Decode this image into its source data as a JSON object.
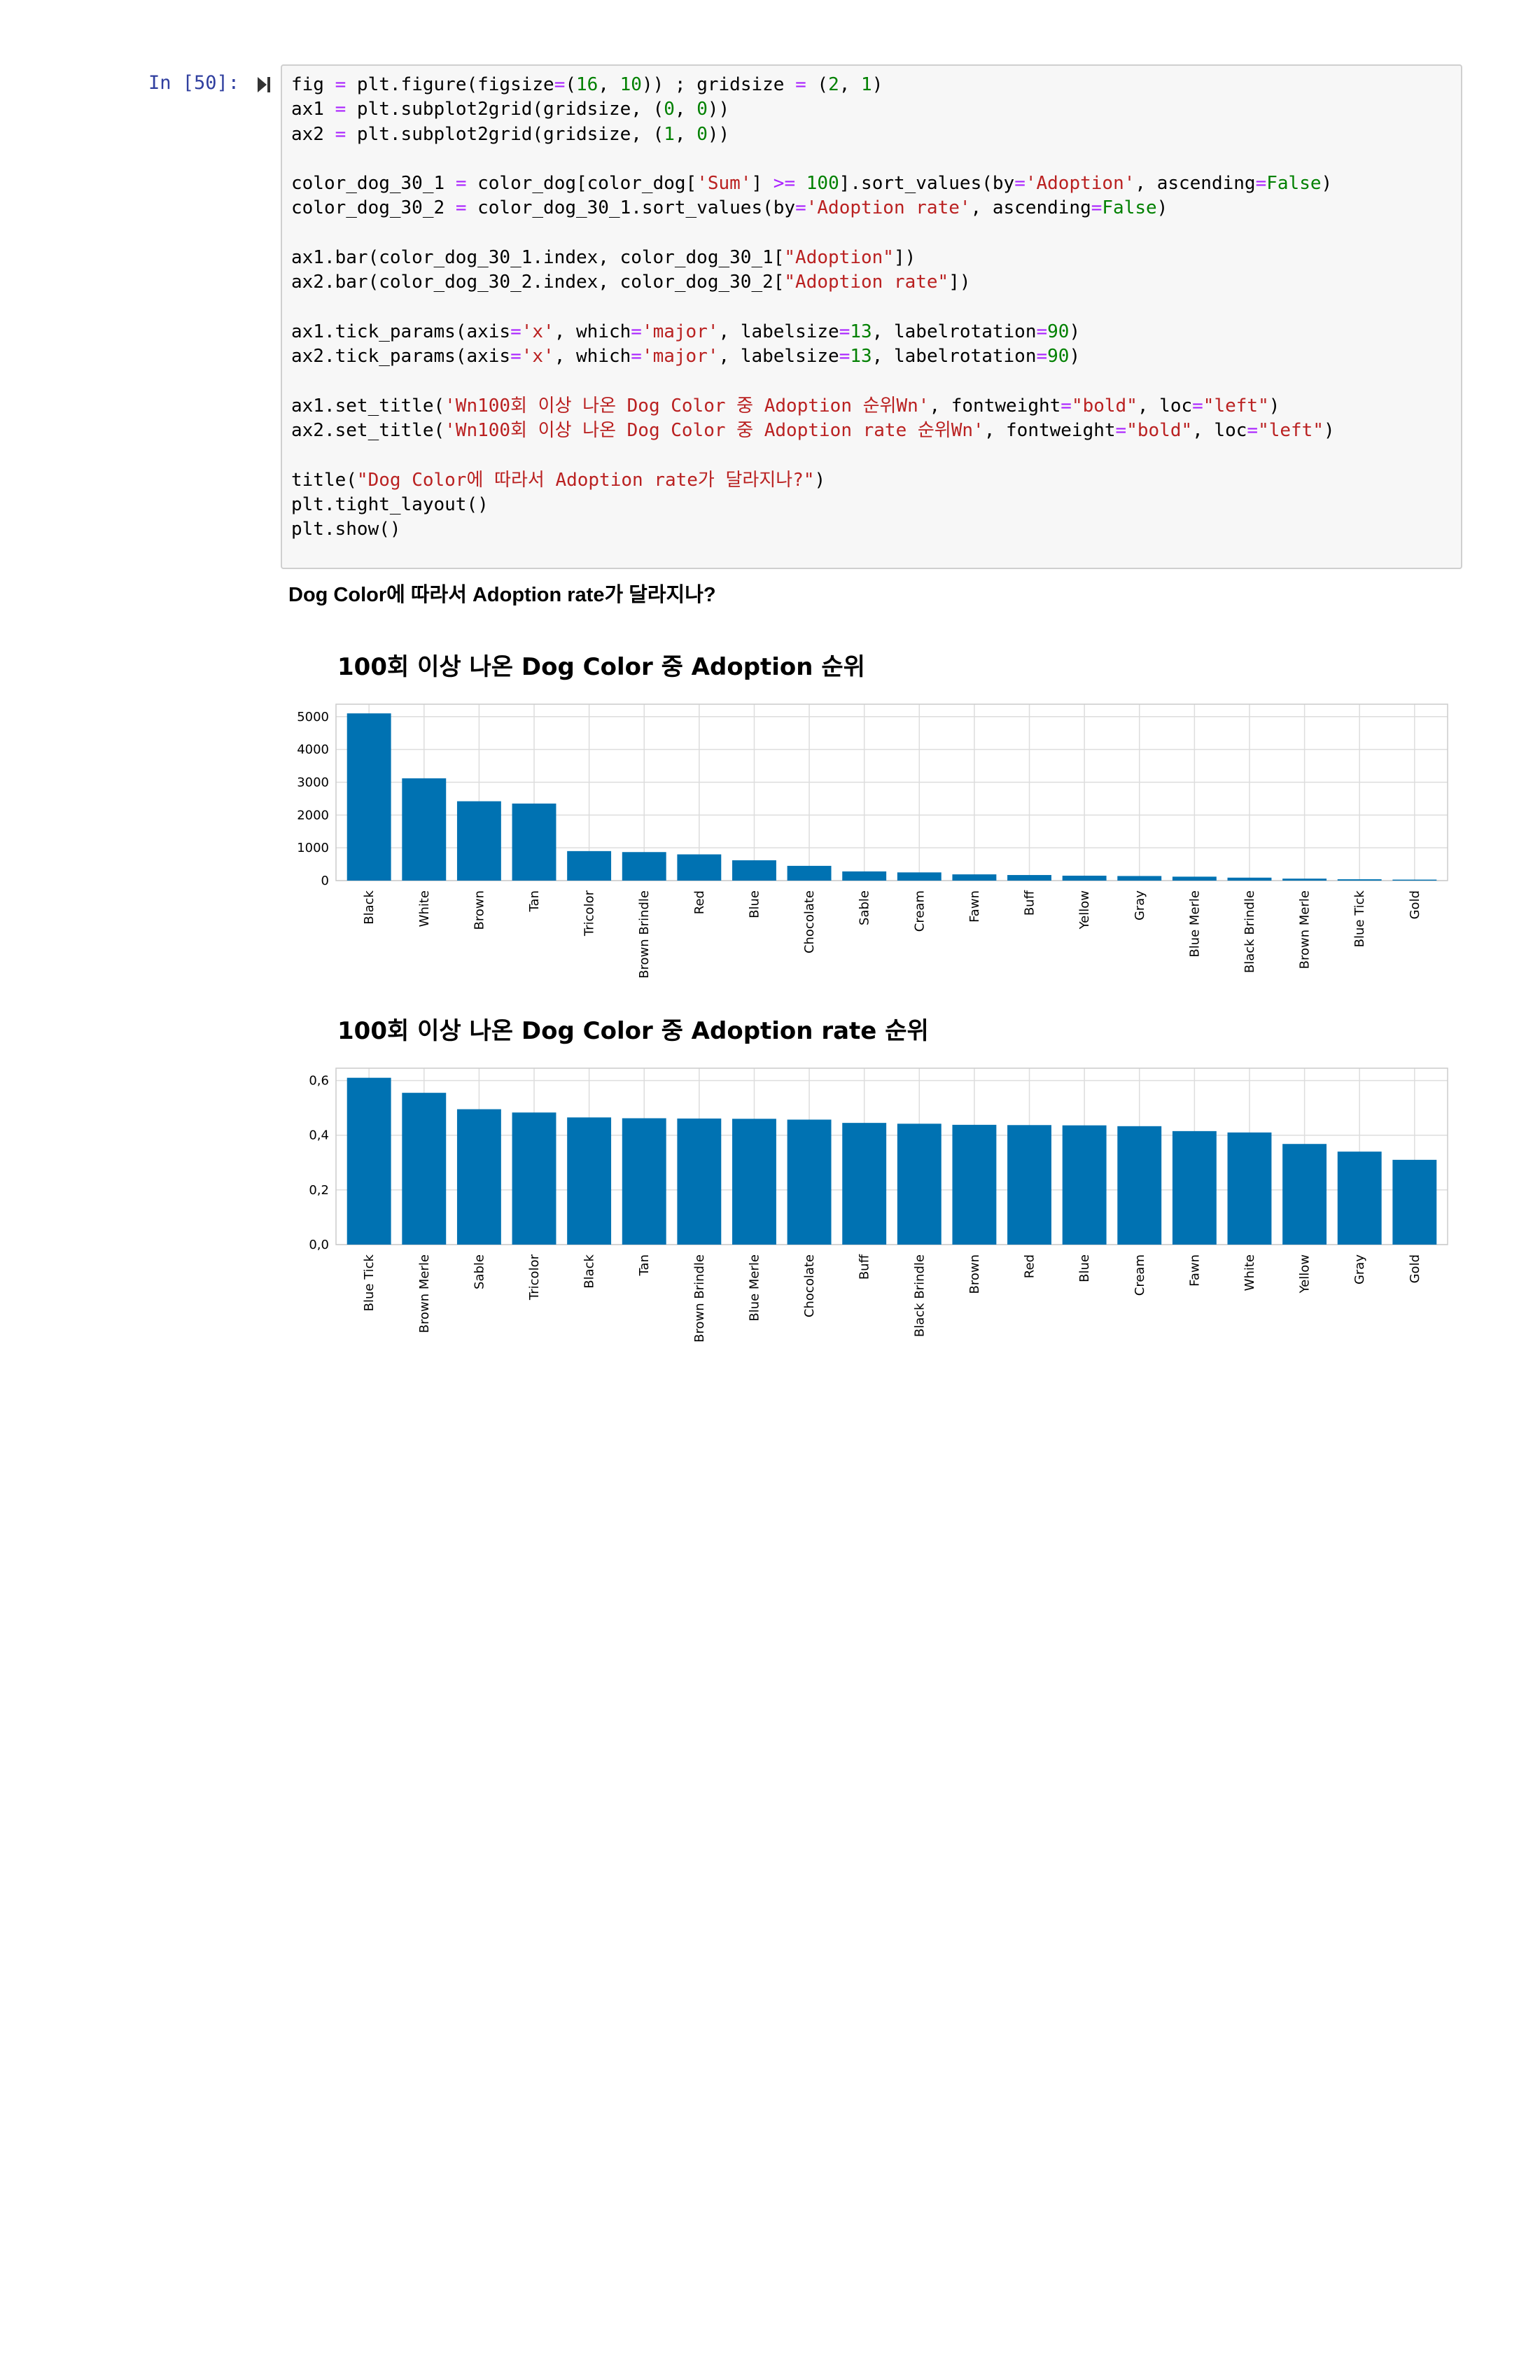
{
  "cell": {
    "prompt": "In [50]:",
    "code_lines": [
      [
        {
          "t": "fig "
        },
        {
          "t": "=",
          "c": "o"
        },
        {
          "t": " plt.figure(figsize"
        },
        {
          "t": "=",
          "c": "o"
        },
        {
          "t": "("
        },
        {
          "t": "16",
          "c": "n"
        },
        {
          "t": ", "
        },
        {
          "t": "10",
          "c": "n"
        },
        {
          "t": ")) ; gridsize "
        },
        {
          "t": "=",
          "c": "o"
        },
        {
          "t": " ("
        },
        {
          "t": "2",
          "c": "n"
        },
        {
          "t": ", "
        },
        {
          "t": "1",
          "c": "n"
        },
        {
          "t": ")"
        }
      ],
      [
        {
          "t": "ax1 "
        },
        {
          "t": "=",
          "c": "o"
        },
        {
          "t": " plt.subplot2grid(gridsize, ("
        },
        {
          "t": "0",
          "c": "n"
        },
        {
          "t": ", "
        },
        {
          "t": "0",
          "c": "n"
        },
        {
          "t": "))"
        }
      ],
      [
        {
          "t": "ax2 "
        },
        {
          "t": "=",
          "c": "o"
        },
        {
          "t": " plt.subplot2grid(gridsize, ("
        },
        {
          "t": "1",
          "c": "n"
        },
        {
          "t": ", "
        },
        {
          "t": "0",
          "c": "n"
        },
        {
          "t": "))"
        }
      ],
      [],
      [
        {
          "t": "color_dog_30_1 "
        },
        {
          "t": "=",
          "c": "o"
        },
        {
          "t": " color_dog[color_dog["
        },
        {
          "t": "'Sum'",
          "c": "s"
        },
        {
          "t": "] "
        },
        {
          "t": ">=",
          "c": "o"
        },
        {
          "t": " "
        },
        {
          "t": "100",
          "c": "n"
        },
        {
          "t": "].sort_values(by"
        },
        {
          "t": "=",
          "c": "o"
        },
        {
          "t": "'Adoption'",
          "c": "s"
        },
        {
          "t": ", ascending"
        },
        {
          "t": "=",
          "c": "o"
        },
        {
          "t": "False",
          "c": "n"
        },
        {
          "t": ")"
        }
      ],
      [
        {
          "t": "color_dog_30_2 "
        },
        {
          "t": "=",
          "c": "o"
        },
        {
          "t": " color_dog_30_1.sort_values(by"
        },
        {
          "t": "=",
          "c": "o"
        },
        {
          "t": "'Adoption rate'",
          "c": "s"
        },
        {
          "t": ", ascending"
        },
        {
          "t": "=",
          "c": "o"
        },
        {
          "t": "False",
          "c": "n"
        },
        {
          "t": ")"
        }
      ],
      [],
      [
        {
          "t": "ax1.bar(color_dog_30_1.index, color_dog_30_1["
        },
        {
          "t": "\"Adoption\"",
          "c": "s"
        },
        {
          "t": "])"
        }
      ],
      [
        {
          "t": "ax2.bar(color_dog_30_2.index, color_dog_30_2["
        },
        {
          "t": "\"Adoption rate\"",
          "c": "s"
        },
        {
          "t": "])"
        }
      ],
      [],
      [
        {
          "t": "ax1.tick_params(axis"
        },
        {
          "t": "=",
          "c": "o"
        },
        {
          "t": "'x'",
          "c": "s"
        },
        {
          "t": ", which"
        },
        {
          "t": "=",
          "c": "o"
        },
        {
          "t": "'major'",
          "c": "s"
        },
        {
          "t": ", labelsize"
        },
        {
          "t": "=",
          "c": "o"
        },
        {
          "t": "13",
          "c": "n"
        },
        {
          "t": ", labelrotation"
        },
        {
          "t": "=",
          "c": "o"
        },
        {
          "t": "90",
          "c": "n"
        },
        {
          "t": ")"
        }
      ],
      [
        {
          "t": "ax2.tick_params(axis"
        },
        {
          "t": "=",
          "c": "o"
        },
        {
          "t": "'x'",
          "c": "s"
        },
        {
          "t": ", which"
        },
        {
          "t": "=",
          "c": "o"
        },
        {
          "t": "'major'",
          "c": "s"
        },
        {
          "t": ", labelsize"
        },
        {
          "t": "=",
          "c": "o"
        },
        {
          "t": "13",
          "c": "n"
        },
        {
          "t": ", labelrotation"
        },
        {
          "t": "=",
          "c": "o"
        },
        {
          "t": "90",
          "c": "n"
        },
        {
          "t": ")"
        }
      ],
      [],
      [
        {
          "t": "ax1.set_title("
        },
        {
          "t": "'Wn100회 이상 나온 Dog Color 중 Adoption 순위Wn'",
          "c": "s"
        },
        {
          "t": ", fontweight"
        },
        {
          "t": "=",
          "c": "o"
        },
        {
          "t": "\"bold\"",
          "c": "s"
        },
        {
          "t": ", loc"
        },
        {
          "t": "=",
          "c": "o"
        },
        {
          "t": "\"left\"",
          "c": "s"
        },
        {
          "t": ")"
        }
      ],
      [
        {
          "t": "ax2.set_title("
        },
        {
          "t": "'Wn100회 이상 나온 Dog Color 중 Adoption rate 순위Wn'",
          "c": "s"
        },
        {
          "t": ", fontweight"
        },
        {
          "t": "=",
          "c": "o"
        },
        {
          "t": "\"bold\"",
          "c": "s"
        },
        {
          "t": ", loc"
        },
        {
          "t": "=",
          "c": "o"
        },
        {
          "t": "\"left\"",
          "c": "s"
        },
        {
          "t": ")"
        }
      ],
      [],
      [
        {
          "t": "title("
        },
        {
          "t": "\"Dog Color에 따라서 Adoption rate가 달라지나?\"",
          "c": "s"
        },
        {
          "t": ")"
        }
      ],
      [
        {
          "t": "plt.tight_layout()"
        }
      ],
      [
        {
          "t": "plt.show()"
        }
      ]
    ]
  },
  "output": {
    "title": "Dog Color에 따라서 Adoption rate가 달라지나?"
  },
  "colors": {
    "bar": "#0072b2",
    "grid": "#dddddd",
    "spine": "#cccccc"
  },
  "chart_data": [
    {
      "type": "bar",
      "title": "100회 이상 나온 Dog Color 중 Adoption 순위",
      "categories": [
        "Black",
        "White",
        "Brown",
        "Tan",
        "Tricolor",
        "Brown Brindle",
        "Red",
        "Blue",
        "Chocolate",
        "Sable",
        "Cream",
        "Fawn",
        "Buff",
        "Yellow",
        "Gray",
        "Blue Merle",
        "Black Brindle",
        "Brown Merle",
        "Blue Tick",
        "Gold"
      ],
      "values": [
        5100,
        3120,
        2420,
        2350,
        900,
        870,
        800,
        620,
        450,
        280,
        250,
        190,
        170,
        150,
        140,
        120,
        90,
        60,
        40,
        30
      ],
      "yticks": [
        0,
        1000,
        2000,
        3000,
        4000,
        5000
      ],
      "ytick_labels": [
        "0",
        "1000",
        "2000",
        "3000",
        "4000",
        "5000"
      ],
      "ylim": [
        0,
        5380
      ],
      "xlabel": "",
      "ylabel": "",
      "grid": true
    },
    {
      "type": "bar",
      "title": "100회 이상 나온 Dog Color 중 Adoption rate 순위",
      "categories": [
        "Blue Tick",
        "Brown Merle",
        "Sable",
        "Tricolor",
        "Black",
        "Tan",
        "Brown Brindle",
        "Blue Merle",
        "Chocolate",
        "Buff",
        "Black Brindle",
        "Brown",
        "Red",
        "Blue",
        "Cream",
        "Fawn",
        "White",
        "Yellow",
        "Gray",
        "Gold"
      ],
      "values": [
        0.61,
        0.555,
        0.495,
        0.483,
        0.465,
        0.462,
        0.461,
        0.46,
        0.457,
        0.445,
        0.442,
        0.438,
        0.437,
        0.436,
        0.433,
        0.415,
        0.41,
        0.368,
        0.34,
        0.31
      ],
      "yticks": [
        0,
        0.2,
        0.4,
        0.6
      ],
      "ytick_labels": [
        "0,0",
        "0,2",
        "0,4",
        "0,6"
      ],
      "ylim": [
        0,
        0.645
      ],
      "xlabel": "",
      "ylabel": "",
      "grid": true
    }
  ]
}
